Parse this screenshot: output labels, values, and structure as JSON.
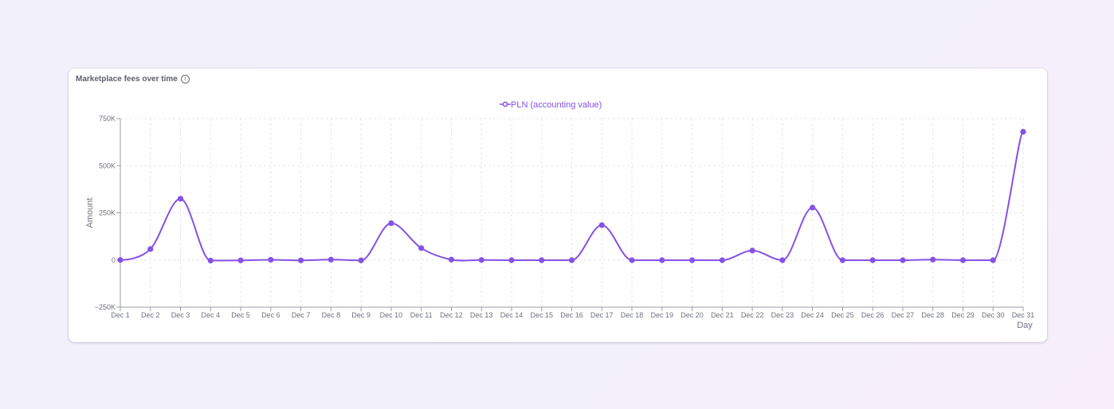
{
  "card": {
    "title": "Marketplace fees over time"
  },
  "colors": {
    "series": "#8552e6",
    "grid": "#e6e6ee",
    "axis": "#9a9ca8"
  },
  "chart_data": {
    "type": "line",
    "title": "",
    "xlabel": "Day",
    "ylabel": "Amount",
    "ylim": [
      -250000,
      750000
    ],
    "y_ticks": [
      -250000,
      0,
      250000,
      500000,
      750000
    ],
    "y_tick_labels": [
      "−250K",
      "0",
      "250K",
      "500K",
      "750K"
    ],
    "legend_position": "top-center",
    "grid": true,
    "categories": [
      "Dec 1",
      "Dec 2",
      "Dec 3",
      "Dec 4",
      "Dec 5",
      "Dec 6",
      "Dec 7",
      "Dec 8",
      "Dec 9",
      "Dec 10",
      "Dec 11",
      "Dec 12",
      "Dec 13",
      "Dec 14",
      "Dec 15",
      "Dec 16",
      "Dec 17",
      "Dec 18",
      "Dec 19",
      "Dec 20",
      "Dec 21",
      "Dec 22",
      "Dec 23",
      "Dec 24",
      "Dec 25",
      "Dec 26",
      "Dec 27",
      "Dec 28",
      "Dec 29",
      "Dec 30",
      "Dec 31"
    ],
    "series": [
      {
        "name": "PLN (accounting value)",
        "values": [
          0,
          58000,
          325000,
          -3000,
          -2000,
          1000,
          -2000,
          2000,
          -2000,
          195000,
          63000,
          2000,
          0,
          -1000,
          -1000,
          -1000,
          185000,
          -1000,
          -1000,
          -1000,
          -1000,
          50000,
          -1000,
          278000,
          -1000,
          -1000,
          -1000,
          2000,
          -1000,
          -1000,
          680000
        ]
      }
    ]
  }
}
